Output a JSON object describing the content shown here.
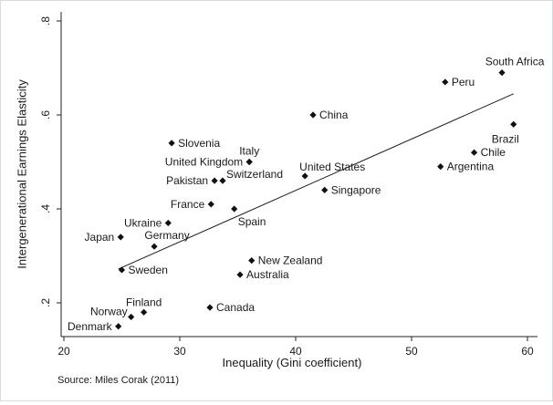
{
  "chart_data": {
    "type": "scatter",
    "title": "",
    "xlabel": "Inequality (Gini coefficient)",
    "ylabel": "Intergenerational Earnings Elasticity",
    "xlim": [
      20,
      60
    ],
    "ylim": [
      0.15,
      0.8
    ],
    "xticks": [
      20,
      30,
      40,
      50,
      60
    ],
    "yticks": [
      0.2,
      0.4,
      0.6,
      0.8
    ],
    "ytick_labels": [
      ".2",
      ".4",
      ".6",
      ".8"
    ],
    "grid": false,
    "legend": false,
    "points": [
      {
        "label": "South Africa",
        "x": 57.8,
        "y": 0.69,
        "pos": "above-left"
      },
      {
        "label": "Peru",
        "x": 52.9,
        "y": 0.67,
        "pos": "right"
      },
      {
        "label": "China",
        "x": 41.5,
        "y": 0.6,
        "pos": "right"
      },
      {
        "label": "Brazil",
        "x": 58.8,
        "y": 0.58,
        "pos": "below-left"
      },
      {
        "label": "Chile",
        "x": 55.4,
        "y": 0.52,
        "pos": "right"
      },
      {
        "label": "Argentina",
        "x": 52.5,
        "y": 0.49,
        "pos": "right"
      },
      {
        "label": "Slovenia",
        "x": 29.3,
        "y": 0.54,
        "pos": "right"
      },
      {
        "label": "Italy",
        "x": 36.0,
        "y": 0.5,
        "pos": "above"
      },
      {
        "label": "United Kingdom",
        "x": 36.0,
        "y": 0.5,
        "pos": "left"
      },
      {
        "label": "United States",
        "x": 40.8,
        "y": 0.47,
        "pos": "above-right"
      },
      {
        "label": "Switzerland",
        "x": 33.7,
        "y": 0.46,
        "pos": "above-right"
      },
      {
        "label": "Pakistan",
        "x": 33.0,
        "y": 0.46,
        "pos": "left"
      },
      {
        "label": "Singapore",
        "x": 42.5,
        "y": 0.44,
        "pos": "right"
      },
      {
        "label": "France",
        "x": 32.7,
        "y": 0.41,
        "pos": "left"
      },
      {
        "label": "Spain",
        "x": 34.7,
        "y": 0.4,
        "pos": "below"
      },
      {
        "label": "Ukraine",
        "x": 29.0,
        "y": 0.37,
        "pos": "left"
      },
      {
        "label": "Japan",
        "x": 24.9,
        "y": 0.34,
        "pos": "left"
      },
      {
        "label": "Germany",
        "x": 27.8,
        "y": 0.32,
        "pos": "above-left"
      },
      {
        "label": "Sweden",
        "x": 25.0,
        "y": 0.27,
        "pos": "right"
      },
      {
        "label": "New Zealand",
        "x": 36.2,
        "y": 0.29,
        "pos": "right"
      },
      {
        "label": "Australia",
        "x": 35.2,
        "y": 0.26,
        "pos": "right"
      },
      {
        "label": "Canada",
        "x": 32.6,
        "y": 0.19,
        "pos": "right"
      },
      {
        "label": "Finland",
        "x": 26.9,
        "y": 0.18,
        "pos": "above"
      },
      {
        "label": "Norway",
        "x": 25.8,
        "y": 0.17,
        "pos": "left"
      },
      {
        "label": "Denmark",
        "x": 24.7,
        "y": 0.15,
        "pos": "left"
      }
    ],
    "fit_line": {
      "x": [
        24.7,
        58.8
      ],
      "y": [
        0.272,
        0.645
      ]
    },
    "note": "Source: Miles Corak (2011)"
  }
}
